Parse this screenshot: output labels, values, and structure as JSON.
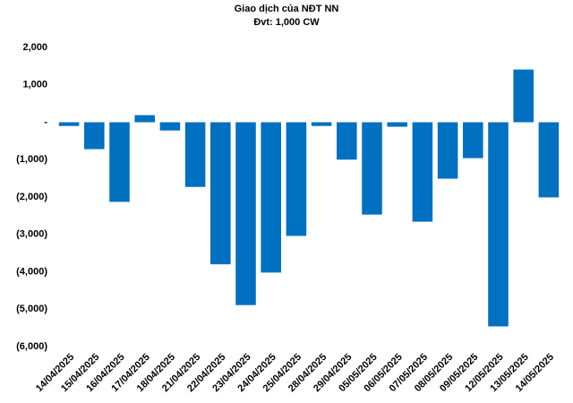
{
  "chart_data": {
    "type": "bar",
    "title": "Giao dịch của NĐT NN",
    "subtitle": "Đvt: 1,000 CW",
    "categories": [
      "14/04/2025",
      "15/04/2025",
      "16/04/2025",
      "17/04/2025",
      "18/04/2025",
      "21/04/2025",
      "22/04/2025",
      "23/04/2025",
      "24/04/2025",
      "25/04/2025",
      "28/04/2025",
      "29/04/2025",
      "05/05/2025",
      "06/05/2025",
      "07/05/2025",
      "08/05/2025",
      "09/05/2025",
      "12/05/2025",
      "13/05/2025",
      "14/05/2025"
    ],
    "values": [
      -100,
      -720,
      -2130,
      190,
      -220,
      -1730,
      -3800,
      -4890,
      -4020,
      -3040,
      -100,
      -1000,
      -2470,
      -120,
      -2660,
      -1510,
      -960,
      -5460,
      1410,
      -2010
    ],
    "color": "#0070c0",
    "ylim": [
      -6000,
      2000
    ],
    "yticks": [
      {
        "value": 2000,
        "label": "2,000"
      },
      {
        "value": 1000,
        "label": "1,000"
      },
      {
        "value": 0,
        "label": "-"
      },
      {
        "value": -1000,
        "label": "(1,000)"
      },
      {
        "value": -2000,
        "label": "(2,000)"
      },
      {
        "value": -3000,
        "label": "(3,000)"
      },
      {
        "value": -4000,
        "label": "(4,000)"
      },
      {
        "value": -5000,
        "label": "(5,000)"
      },
      {
        "value": -6000,
        "label": "(6,000)"
      }
    ],
    "grid": false
  }
}
